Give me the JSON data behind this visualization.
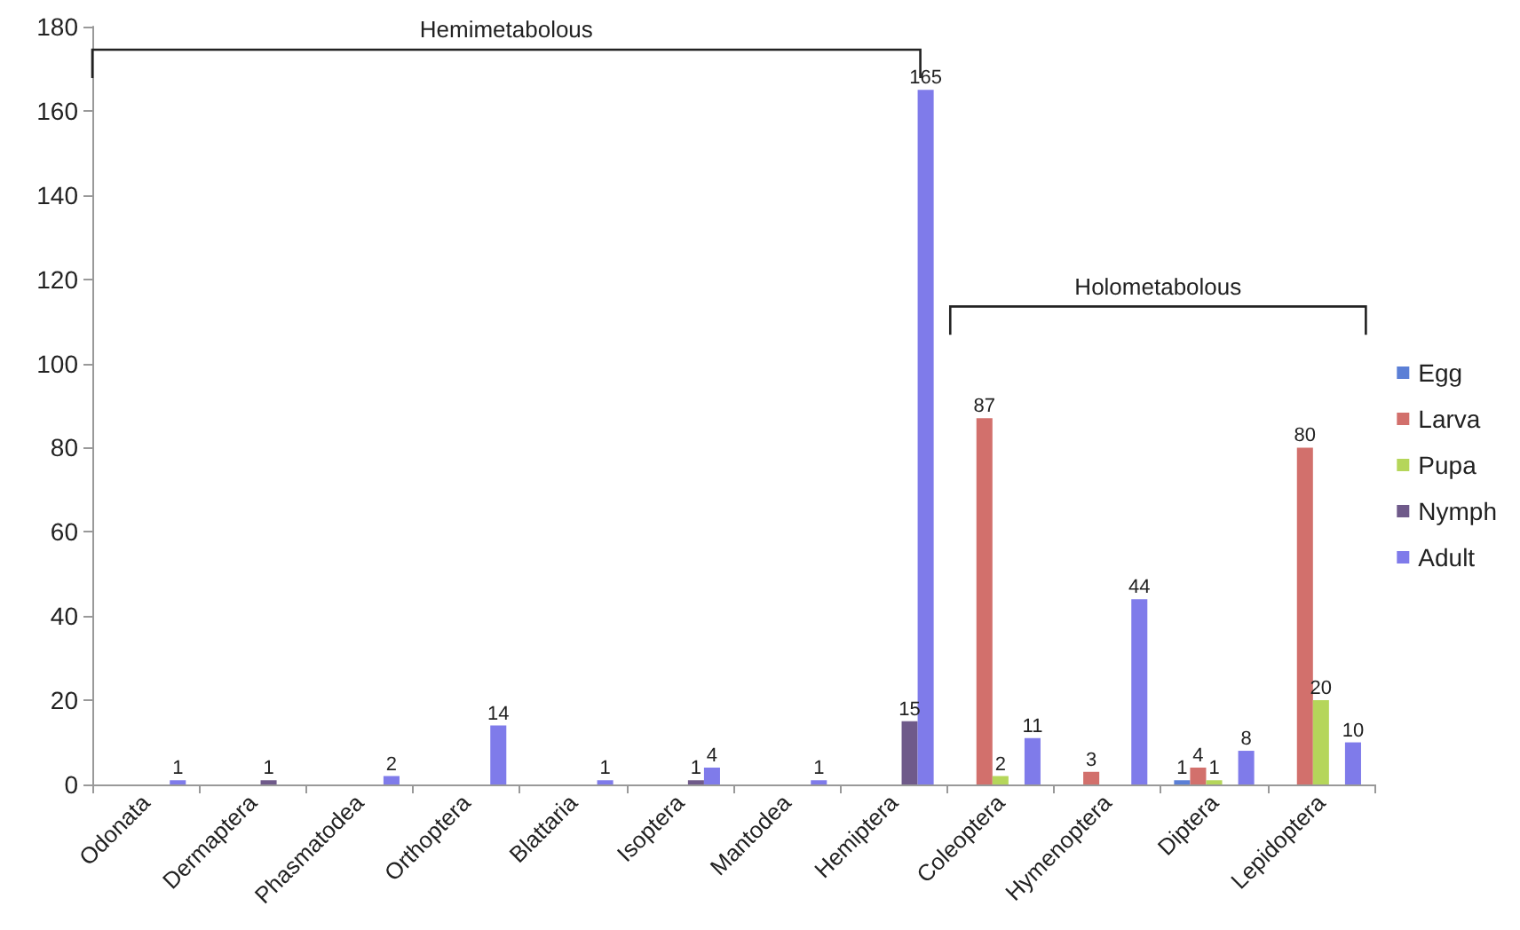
{
  "chart_data": {
    "type": "bar",
    "categories": [
      "Odonata",
      "Dermaptera",
      "Phasmatodea",
      "Orthoptera",
      "Blattaria",
      "Isoptera",
      "Mantodea",
      "Hemiptera",
      "Coleoptera",
      "Hymenoptera",
      "Diptera",
      "Lepidoptera"
    ],
    "series": [
      {
        "name": "Egg",
        "color": "#5b7fd6",
        "values": [
          0,
          0,
          0,
          0,
          0,
          0,
          0,
          0,
          0,
          0,
          1,
          0
        ],
        "value_labels": [
          null,
          null,
          null,
          null,
          null,
          null,
          null,
          null,
          null,
          null,
          "1",
          null
        ]
      },
      {
        "name": "Larva",
        "color": "#d2706c",
        "values": [
          0,
          0,
          0,
          0,
          0,
          0,
          0,
          0,
          87,
          3,
          4,
          80
        ],
        "value_labels": [
          null,
          null,
          null,
          null,
          null,
          null,
          null,
          null,
          "87",
          "3",
          "4",
          "80"
        ]
      },
      {
        "name": "Pupa",
        "color": "#b5d65a",
        "values": [
          0,
          0,
          0,
          0,
          0,
          0,
          0,
          0,
          2,
          0,
          1,
          20
        ],
        "value_labels": [
          null,
          null,
          null,
          null,
          null,
          null,
          null,
          null,
          "2",
          null,
          "1",
          "20"
        ]
      },
      {
        "name": "Nymph",
        "color": "#6f5a8a",
        "values": [
          0,
          1,
          0,
          0,
          0,
          1,
          0,
          15,
          0,
          0,
          0,
          0
        ],
        "value_labels": [
          null,
          "1",
          null,
          null,
          null,
          "1",
          null,
          "15",
          null,
          null,
          null,
          null
        ]
      },
      {
        "name": "Adult",
        "color": "#7f7bea",
        "values": [
          1,
          0,
          2,
          14,
          1,
          4,
          1,
          165,
          11,
          44,
          8,
          10
        ],
        "value_labels": [
          "1",
          null,
          "2",
          "14",
          "1",
          "4",
          "1",
          "165",
          "11",
          "44",
          "8",
          "10"
        ]
      }
    ],
    "ylim": [
      0,
      180
    ],
    "yticks": [
      0,
      20,
      40,
      60,
      80,
      100,
      120,
      140,
      160,
      180
    ],
    "grid": false,
    "legend": "right",
    "annotations": [
      "Hemimetabolous",
      "Holometabolous"
    ]
  }
}
